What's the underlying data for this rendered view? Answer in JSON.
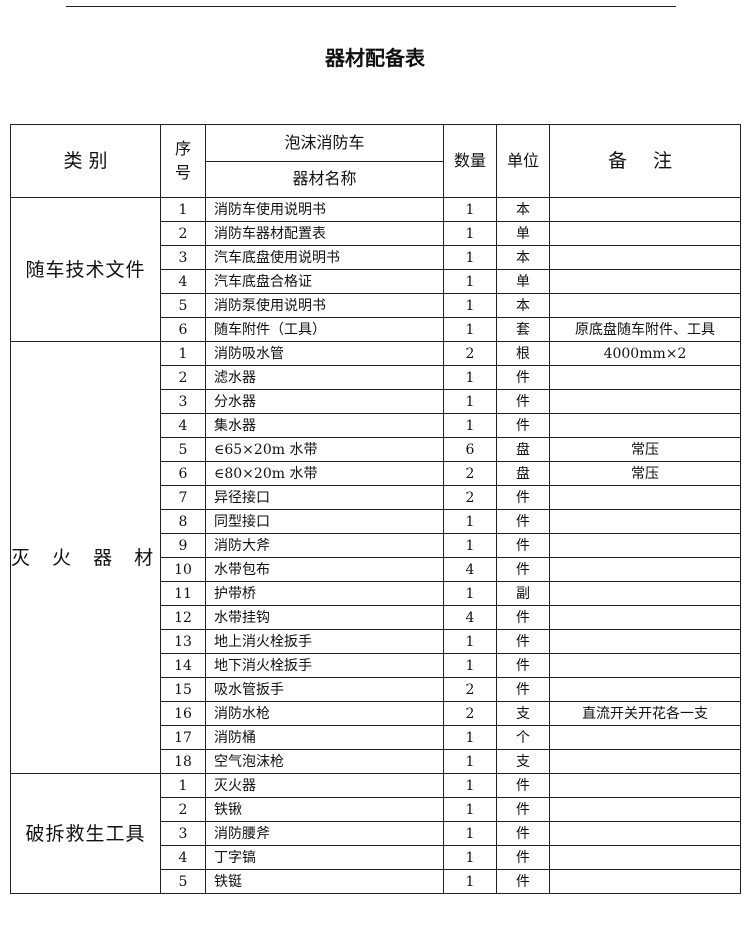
{
  "title": "器材配备表",
  "header": {
    "category": "类 别",
    "seq": "序\n号",
    "vehicle": "泡沫消防车",
    "name": "器材名称",
    "qty": "数量",
    "unit": "单位",
    "note": "备 注"
  },
  "sections": [
    {
      "category": "随车技术文件",
      "rows": [
        {
          "no": "1",
          "name": "消防车使用说明书",
          "qty": "1",
          "unit": "本",
          "note": ""
        },
        {
          "no": "2",
          "name": "消防车器材配置表",
          "qty": "1",
          "unit": "单",
          "note": ""
        },
        {
          "no": "3",
          "name": "汽车底盘使用说明书",
          "qty": "1",
          "unit": "本",
          "note": ""
        },
        {
          "no": "4",
          "name": "汽车底盘合格证",
          "qty": "1",
          "unit": "单",
          "note": ""
        },
        {
          "no": "5",
          "name": "消防泵使用说明书",
          "qty": "1",
          "unit": "本",
          "note": ""
        },
        {
          "no": "6",
          "name": "随车附件（工具）",
          "qty": "1",
          "unit": "套",
          "note": "原底盘随车附件、工具"
        }
      ]
    },
    {
      "category": "灭 火 器 材",
      "rows": [
        {
          "no": "1",
          "name": "消防吸水管",
          "qty": "2",
          "unit": "根",
          "note": "4000mm×2"
        },
        {
          "no": "2",
          "name": "滤水器",
          "qty": "1",
          "unit": "件",
          "note": ""
        },
        {
          "no": "3",
          "name": "分水器",
          "qty": "1",
          "unit": "件",
          "note": ""
        },
        {
          "no": "4",
          "name": "集水器",
          "qty": "1",
          "unit": "件",
          "note": ""
        },
        {
          "no": "5",
          "name": "∈65×20m 水带",
          "qty": "6",
          "unit": "盘",
          "note": "常压"
        },
        {
          "no": "6",
          "name": "∈80×20m 水带",
          "qty": "2",
          "unit": "盘",
          "note": "常压"
        },
        {
          "no": "7",
          "name": "异径接口",
          "qty": "2",
          "unit": "件",
          "note": ""
        },
        {
          "no": "8",
          "name": "同型接口",
          "qty": "1",
          "unit": "件",
          "note": ""
        },
        {
          "no": "9",
          "name": "消防大斧",
          "qty": "1",
          "unit": "件",
          "note": ""
        },
        {
          "no": "10",
          "name": "水带包布",
          "qty": "4",
          "unit": "件",
          "note": ""
        },
        {
          "no": "11",
          "name": "护带桥",
          "qty": "1",
          "unit": "副",
          "note": ""
        },
        {
          "no": "12",
          "name": "水带挂钩",
          "qty": "4",
          "unit": "件",
          "note": ""
        },
        {
          "no": "13",
          "name": "地上消火栓扳手",
          "qty": "1",
          "unit": "件",
          "note": ""
        },
        {
          "no": "14",
          "name": "地下消火栓扳手",
          "qty": "1",
          "unit": "件",
          "note": ""
        },
        {
          "no": "15",
          "name": "吸水管扳手",
          "qty": "2",
          "unit": "件",
          "note": ""
        },
        {
          "no": "16",
          "name": "消防水枪",
          "qty": "2",
          "unit": "支",
          "note": "直流开关开花各一支"
        },
        {
          "no": "17",
          "name": "消防桶",
          "qty": "1",
          "unit": "个",
          "note": ""
        },
        {
          "no": "18",
          "name": "空气泡沫枪",
          "qty": "1",
          "unit": "支",
          "note": ""
        }
      ]
    },
    {
      "category": "破拆救生工具",
      "rows": [
        {
          "no": "1",
          "name": "灭火器",
          "qty": "1",
          "unit": "件",
          "note": ""
        },
        {
          "no": "2",
          "name": "铁锹",
          "qty": "1",
          "unit": "件",
          "note": ""
        },
        {
          "no": "3",
          "name": "消防腰斧",
          "qty": "1",
          "unit": "件",
          "note": ""
        },
        {
          "no": "4",
          "name": "丁字镐",
          "qty": "1",
          "unit": "件",
          "note": ""
        },
        {
          "no": "5",
          "name": "铁铤",
          "qty": "1",
          "unit": "件",
          "note": ""
        }
      ]
    }
  ]
}
